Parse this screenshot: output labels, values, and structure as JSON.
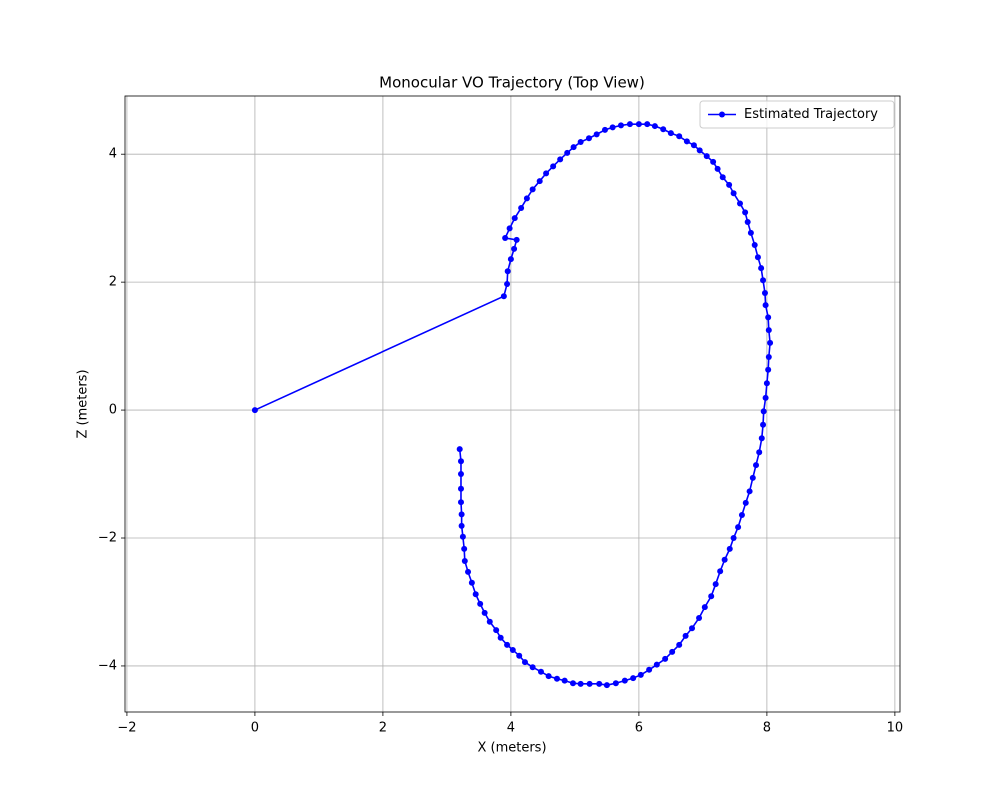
{
  "chart_data": {
    "type": "line",
    "title": "Monocular VO Trajectory (Top View)",
    "x_label": "X (meters)",
    "y_label": "Z (meters)",
    "xlim": [
      -2.03,
      10.08
    ],
    "ylim": [
      -4.72,
      4.91
    ],
    "xticks": [
      {
        "value": -2,
        "label": "−2"
      },
      0,
      2,
      4,
      6,
      8,
      10
    ],
    "yticks": [
      {
        "value": -4,
        "label": "−4"
      },
      {
        "value": -2,
        "label": "−2"
      },
      0,
      2,
      4
    ],
    "grid": true,
    "legend": "upper right",
    "series": [
      {
        "name": "Estimated Trajectory",
        "color": "#0000ff",
        "x": [
          0,
          3.89,
          3.94,
          3.95,
          4.0,
          4.05,
          4.09,
          3.91,
          3.98,
          4.06,
          4.16,
          4.25,
          4.34,
          4.45,
          4.55,
          4.66,
          4.77,
          4.88,
          4.98,
          5.09,
          5.22,
          5.34,
          5.47,
          5.59,
          5.72,
          5.86,
          6.0,
          6.13,
          6.25,
          6.38,
          6.5,
          6.63,
          6.75,
          6.86,
          6.95,
          7.06,
          7.16,
          7.23,
          7.31,
          7.41,
          7.48,
          7.58,
          7.66,
          7.7,
          7.75,
          7.81,
          7.86,
          7.91,
          7.94,
          7.97,
          7.98,
          8.02,
          8.03,
          8.05,
          8.03,
          8.02,
          8.0,
          7.98,
          7.95,
          7.94,
          7.92,
          7.88,
          7.83,
          7.78,
          7.73,
          7.67,
          7.61,
          7.55,
          7.48,
          7.42,
          7.34,
          7.27,
          7.2,
          7.13,
          7.03,
          6.94,
          6.83,
          6.73,
          6.63,
          6.52,
          6.41,
          6.28,
          6.16,
          6.03,
          5.91,
          5.78,
          5.64,
          5.5,
          5.38,
          5.23,
          5.09,
          4.97,
          4.84,
          4.72,
          4.59,
          4.47,
          4.34,
          4.22,
          4.13,
          4.03,
          3.94,
          3.84,
          3.77,
          3.67,
          3.59,
          3.52,
          3.45,
          3.39,
          3.33,
          3.28,
          3.27,
          3.25,
          3.23,
          3.23,
          3.22,
          3.22,
          3.22,
          3.22,
          3.2
        ],
        "values": [
          0,
          1.78,
          1.97,
          2.17,
          2.36,
          2.52,
          2.66,
          2.69,
          2.84,
          3.0,
          3.16,
          3.31,
          3.45,
          3.58,
          3.7,
          3.81,
          3.92,
          4.02,
          4.11,
          4.19,
          4.25,
          4.31,
          4.38,
          4.42,
          4.45,
          4.47,
          4.47,
          4.47,
          4.44,
          4.39,
          4.33,
          4.28,
          4.2,
          4.14,
          4.06,
          3.97,
          3.88,
          3.77,
          3.64,
          3.52,
          3.39,
          3.23,
          3.09,
          2.94,
          2.77,
          2.58,
          2.39,
          2.22,
          2.03,
          1.83,
          1.64,
          1.45,
          1.25,
          1.05,
          0.83,
          0.63,
          0.42,
          0.19,
          -0.02,
          -0.23,
          -0.44,
          -0.66,
          -0.86,
          -1.06,
          -1.27,
          -1.45,
          -1.64,
          -1.83,
          -2.0,
          -2.17,
          -2.34,
          -2.52,
          -2.72,
          -2.91,
          -3.08,
          -3.25,
          -3.41,
          -3.53,
          -3.67,
          -3.78,
          -3.89,
          -3.98,
          -4.06,
          -4.14,
          -4.19,
          -4.23,
          -4.27,
          -4.3,
          -4.28,
          -4.28,
          -4.28,
          -4.27,
          -4.23,
          -4.2,
          -4.16,
          -4.09,
          -4.02,
          -3.94,
          -3.84,
          -3.75,
          -3.67,
          -3.56,
          -3.44,
          -3.31,
          -3.17,
          -3.03,
          -2.88,
          -2.7,
          -2.53,
          -2.36,
          -2.17,
          -1.98,
          -1.81,
          -1.63,
          -1.44,
          -1.23,
          -1.0,
          -0.8,
          -0.61
        ]
      }
    ]
  }
}
